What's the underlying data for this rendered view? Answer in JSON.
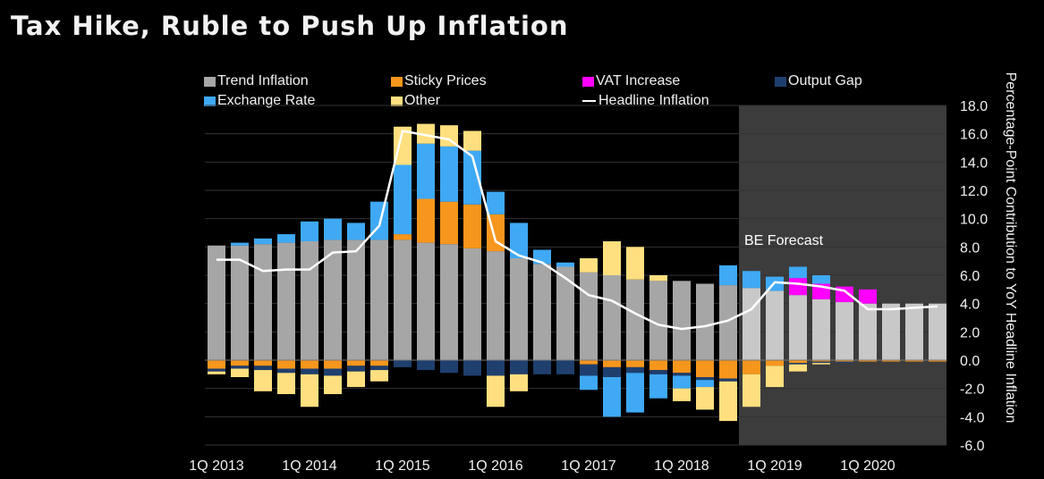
{
  "title": "Tax Hike, Ruble to Push Up Inflation",
  "chart_data": {
    "type": "bar",
    "stacked": true,
    "ylabel": "Percentage-Point Contribution to YoY Headline Inflation",
    "ylim": [
      -6,
      18
    ],
    "yticks": [
      "18.0",
      "16.0",
      "14.0",
      "12.0",
      "10.0",
      "8.0",
      "6.0",
      "4.0",
      "2.0",
      "0.0",
      "-2.0",
      "-4.0",
      "-6.0"
    ],
    "y_axis_side": "right",
    "grid": true,
    "legend_position": "top",
    "x_tick_labels": [
      "1Q 2013",
      "1Q 2014",
      "1Q 2015",
      "1Q 2016",
      "1Q 2017",
      "1Q 2018",
      "1Q 2019",
      "1Q 2020"
    ],
    "categories": [
      "1Q 2013",
      "2Q 2013",
      "3Q 2013",
      "4Q 2013",
      "1Q 2014",
      "2Q 2014",
      "3Q 2014",
      "4Q 2014",
      "1Q 2015",
      "2Q 2015",
      "3Q 2015",
      "4Q 2015",
      "1Q 2016",
      "2Q 2016",
      "3Q 2016",
      "4Q 2016",
      "1Q 2017",
      "2Q 2017",
      "3Q 2017",
      "4Q 2017",
      "1Q 2018",
      "2Q 2018",
      "3Q 2018",
      "4Q 2018",
      "1Q 2019",
      "2Q 2019",
      "3Q 2019",
      "4Q 2019",
      "1Q 2020",
      "2Q 2020",
      "3Q 2020",
      "4Q 2020"
    ],
    "forecast_start_index": 23,
    "forecast_label": "BE Forecast",
    "series": [
      {
        "name": "Trend Inflation",
        "color": "#a6a6a6",
        "forecast_color": "#c8c8c8",
        "values": [
          8.1,
          8.1,
          8.2,
          8.3,
          8.4,
          8.5,
          8.5,
          8.5,
          8.5,
          8.3,
          8.2,
          7.9,
          7.7,
          7.2,
          6.8,
          6.6,
          6.2,
          6.0,
          5.7,
          5.6,
          5.6,
          5.4,
          5.3,
          5.1,
          4.9,
          4.6,
          4.3,
          4.1,
          4.0,
          4.0,
          4.0,
          4.0
        ]
      },
      {
        "name": "Sticky Prices",
        "color": "#f7961d",
        "values": [
          -0.6,
          -0.4,
          -0.4,
          -0.6,
          -0.6,
          -0.6,
          -0.4,
          -0.4,
          0.4,
          3.1,
          3.0,
          3.1,
          2.6,
          0.0,
          0.0,
          0.0,
          -0.3,
          -0.5,
          -0.5,
          -0.7,
          -0.9,
          -1.2,
          -1.3,
          -1.0,
          -0.4,
          -0.2,
          -0.1,
          -0.1,
          -0.1,
          -0.1,
          -0.1,
          -0.1
        ]
      },
      {
        "name": "VAT Increase",
        "color": "#ff00ff",
        "values": [
          0,
          0,
          0,
          0,
          0,
          0,
          0,
          0,
          0,
          0,
          0,
          0,
          0,
          0,
          0,
          0,
          0,
          0,
          0,
          0,
          0,
          0,
          0,
          0,
          0,
          1.2,
          1.1,
          1.1,
          1.0,
          0,
          0,
          0
        ]
      },
      {
        "name": "Output Gap",
        "color": "#1f3f6e",
        "values": [
          -0.2,
          -0.2,
          -0.3,
          -0.3,
          -0.4,
          -0.5,
          -0.4,
          -0.3,
          -0.5,
          -0.7,
          -0.9,
          -1.1,
          -1.1,
          -1.0,
          -1.0,
          -1.0,
          -0.8,
          -0.7,
          -0.4,
          -0.3,
          -0.2,
          -0.2,
          -0.2,
          0,
          0,
          -0.1,
          -0.1,
          -0.1,
          0,
          0,
          0,
          0
        ]
      },
      {
        "name": "Exchange Rate",
        "color": "#3fa9f5",
        "values": [
          0.0,
          0.2,
          0.4,
          0.6,
          1.4,
          1.5,
          1.2,
          2.7,
          4.9,
          3.9,
          3.9,
          3.8,
          1.6,
          2.5,
          1.0,
          0.3,
          -1.0,
          -2.8,
          -2.8,
          -1.7,
          -0.9,
          -0.5,
          1.4,
          1.2,
          1.0,
          0.8,
          0.6,
          0.0,
          0.0,
          0.0,
          0.0,
          0.0
        ]
      },
      {
        "name": "Other",
        "color": "#ffdf7f",
        "values": [
          -0.2,
          -0.6,
          -1.5,
          -1.5,
          -2.3,
          -1.3,
          -1.1,
          -0.8,
          2.7,
          1.4,
          1.5,
          1.4,
          -2.2,
          -1.2,
          0,
          0,
          1.0,
          2.4,
          2.3,
          0.4,
          -0.9,
          -1.6,
          -2.8,
          -2.3,
          -1.5,
          -0.5,
          -0.1,
          0.0,
          0.0,
          0.0,
          0.0,
          0.0
        ]
      },
      {
        "name": "Headline Inflation",
        "color": "#ffffff",
        "kind": "line",
        "values": [
          7.1,
          7.1,
          6.3,
          6.4,
          6.4,
          7.6,
          7.7,
          9.5,
          16.2,
          15.9,
          15.6,
          14.4,
          8.4,
          7.4,
          6.9,
          5.8,
          4.6,
          4.2,
          3.3,
          2.5,
          2.2,
          2.4,
          2.8,
          3.6,
          5.5,
          5.4,
          5.2,
          4.9,
          3.6,
          3.6,
          3.7,
          3.8
        ]
      }
    ]
  },
  "legend": {
    "trend": "Trend Inflation",
    "sticky": "Sticky Prices",
    "vat": "VAT Increase",
    "gap": "Output Gap",
    "fx": "Exchange Rate",
    "other": "Other",
    "headline": "Headline Inflation"
  },
  "colors": {
    "background": "#000000",
    "plot_background": "#000000",
    "forecast_band": "#3c3c3c",
    "grid": "#333333"
  }
}
